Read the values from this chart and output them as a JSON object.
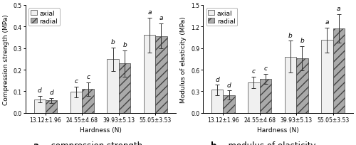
{
  "chart_a": {
    "title_bold": "a",
    "title_rest": ". compression strength",
    "ylabel": "Compression strength (MPa)",
    "xlabel": "Hardness (N)",
    "ylim": [
      0,
      0.5
    ],
    "yticks": [
      0.0,
      0.1,
      0.2,
      0.3,
      0.4,
      0.5
    ],
    "categories": [
      "13.12±1.96",
      "24.55±4.68",
      "39.93±5.13",
      "55.05±3.53"
    ],
    "axial_values": [
      0.063,
      0.097,
      0.248,
      0.36
    ],
    "radial_values": [
      0.058,
      0.11,
      0.228,
      0.355
    ],
    "axial_errors": [
      0.015,
      0.025,
      0.055,
      0.08
    ],
    "radial_errors": [
      0.012,
      0.03,
      0.06,
      0.058
    ],
    "axial_labels": [
      "d",
      "c",
      "b",
      "a"
    ],
    "radial_labels": [
      "d",
      "c",
      "b",
      "a"
    ]
  },
  "chart_b": {
    "title_bold": "b",
    "title_rest": ". modulus of elasticity",
    "ylabel": "Modulus of elasticity (MPa)",
    "xlabel": "Hardness (N)",
    "ylim": [
      0,
      1.5
    ],
    "yticks": [
      0.0,
      0.3,
      0.6,
      0.9,
      1.2,
      1.5
    ],
    "categories": [
      "13.12±1.96",
      "24.55±4.68",
      "39.93±5.13",
      "55.05±3.53"
    ],
    "axial_values": [
      0.32,
      0.42,
      0.78,
      1.01
    ],
    "radial_values": [
      0.25,
      0.47,
      0.76,
      1.17
    ],
    "axial_errors": [
      0.07,
      0.08,
      0.22,
      0.17
    ],
    "radial_errors": [
      0.06,
      0.07,
      0.17,
      0.2
    ],
    "axial_labels": [
      "d",
      "c",
      "b",
      "a"
    ],
    "radial_labels": [
      "d",
      "c",
      "b",
      "a"
    ]
  },
  "axial_color": "#f0f0f0",
  "radial_color": "#aaaaaa",
  "radial_hatch_color": "#555555",
  "bar_edge_color": "#444444",
  "bar_width": 0.32,
  "label_fontsize": 6.5,
  "tick_fontsize": 5.5,
  "sig_fontsize": 6.5,
  "legend_fontsize": 6.5,
  "title_fontsize": 8.5
}
